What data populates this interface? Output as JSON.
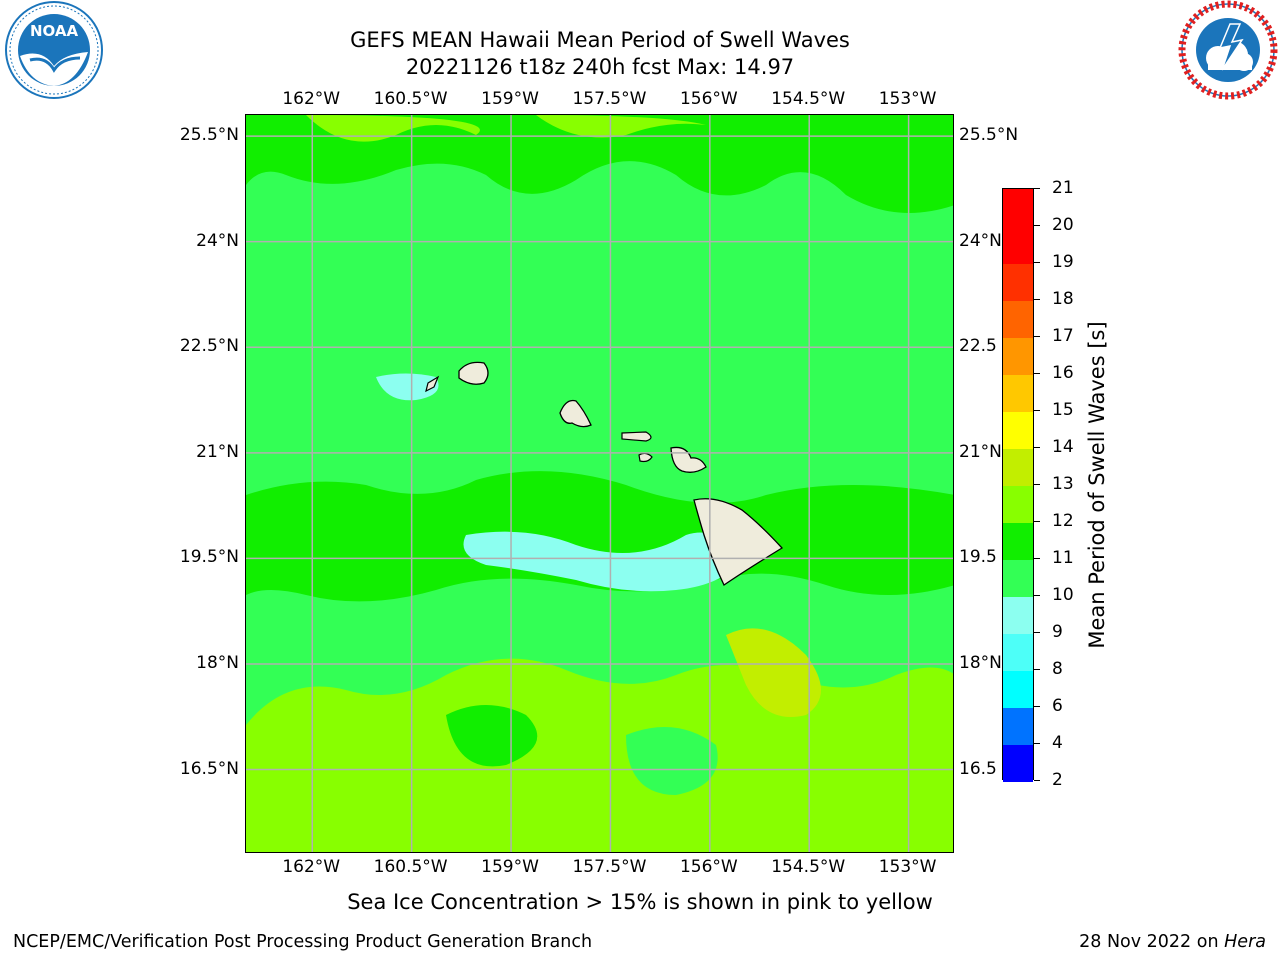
{
  "header": {
    "title_line1": "GEFS MEAN Hawaii Mean Period of Swell Waves",
    "title_line2": "20221126 t18z 240h fcst   Max: 14.97"
  },
  "logos": {
    "left": {
      "icon": "noaa-logo-icon",
      "text": "NATIONAL OCEANIC AND ATMOSPHERIC ADMINISTRATION",
      "color": "#1b75bb"
    },
    "right": {
      "icon": "nws-logo-icon",
      "text": "NATIONAL WEATHER SERVICE",
      "color": "#e02020"
    }
  },
  "map": {
    "lon_ticks": [
      "162°W",
      "160.5°W",
      "159°W",
      "157.5°W",
      "156°W",
      "154.5°W",
      "153°W"
    ],
    "lat_ticks": [
      "25.5°N",
      "24°N",
      "22.5°N",
      "21°N",
      "19.5°N",
      "18°N",
      "16.5°N"
    ],
    "lat_ticks_right": [
      "25.5°N",
      "24°N",
      "22.5",
      "21°N",
      "19.5",
      "18°N",
      "16.5"
    ],
    "lon_range": [
      -163,
      -152.3
    ],
    "lat_range": [
      15.3,
      25.8
    ],
    "grid": true,
    "colors": {
      "land": "#efecdc",
      "grid": "#b0b0b0",
      "no_data": "#ffffff"
    }
  },
  "colorbar": {
    "title": "Mean Period of Swell Waves [s]",
    "labels": [
      "2",
      "4",
      "6",
      "8",
      "9",
      "10",
      "11",
      "12",
      "13",
      "14",
      "15",
      "16",
      "17",
      "18",
      "19",
      "20",
      "21"
    ],
    "colors": [
      "#0000ff",
      "#0073ff",
      "#00ffff",
      "#4dfff8",
      "#8cfff0",
      "#33ff55",
      "#11ee00",
      "#88ff00",
      "#c2ee00",
      "#ffff00",
      "#ffc800",
      "#ff9600",
      "#ff6400",
      "#ff3000",
      "#ff0000"
    ]
  },
  "caption": "Sea Ice Concentration > 15% is shown in pink to yellow",
  "footer": {
    "left": "NCEP/EMC/Verification Post Processing Product Generation Branch",
    "right_prefix": "28 Nov 2022 on",
    "right_host": "Hera"
  }
}
